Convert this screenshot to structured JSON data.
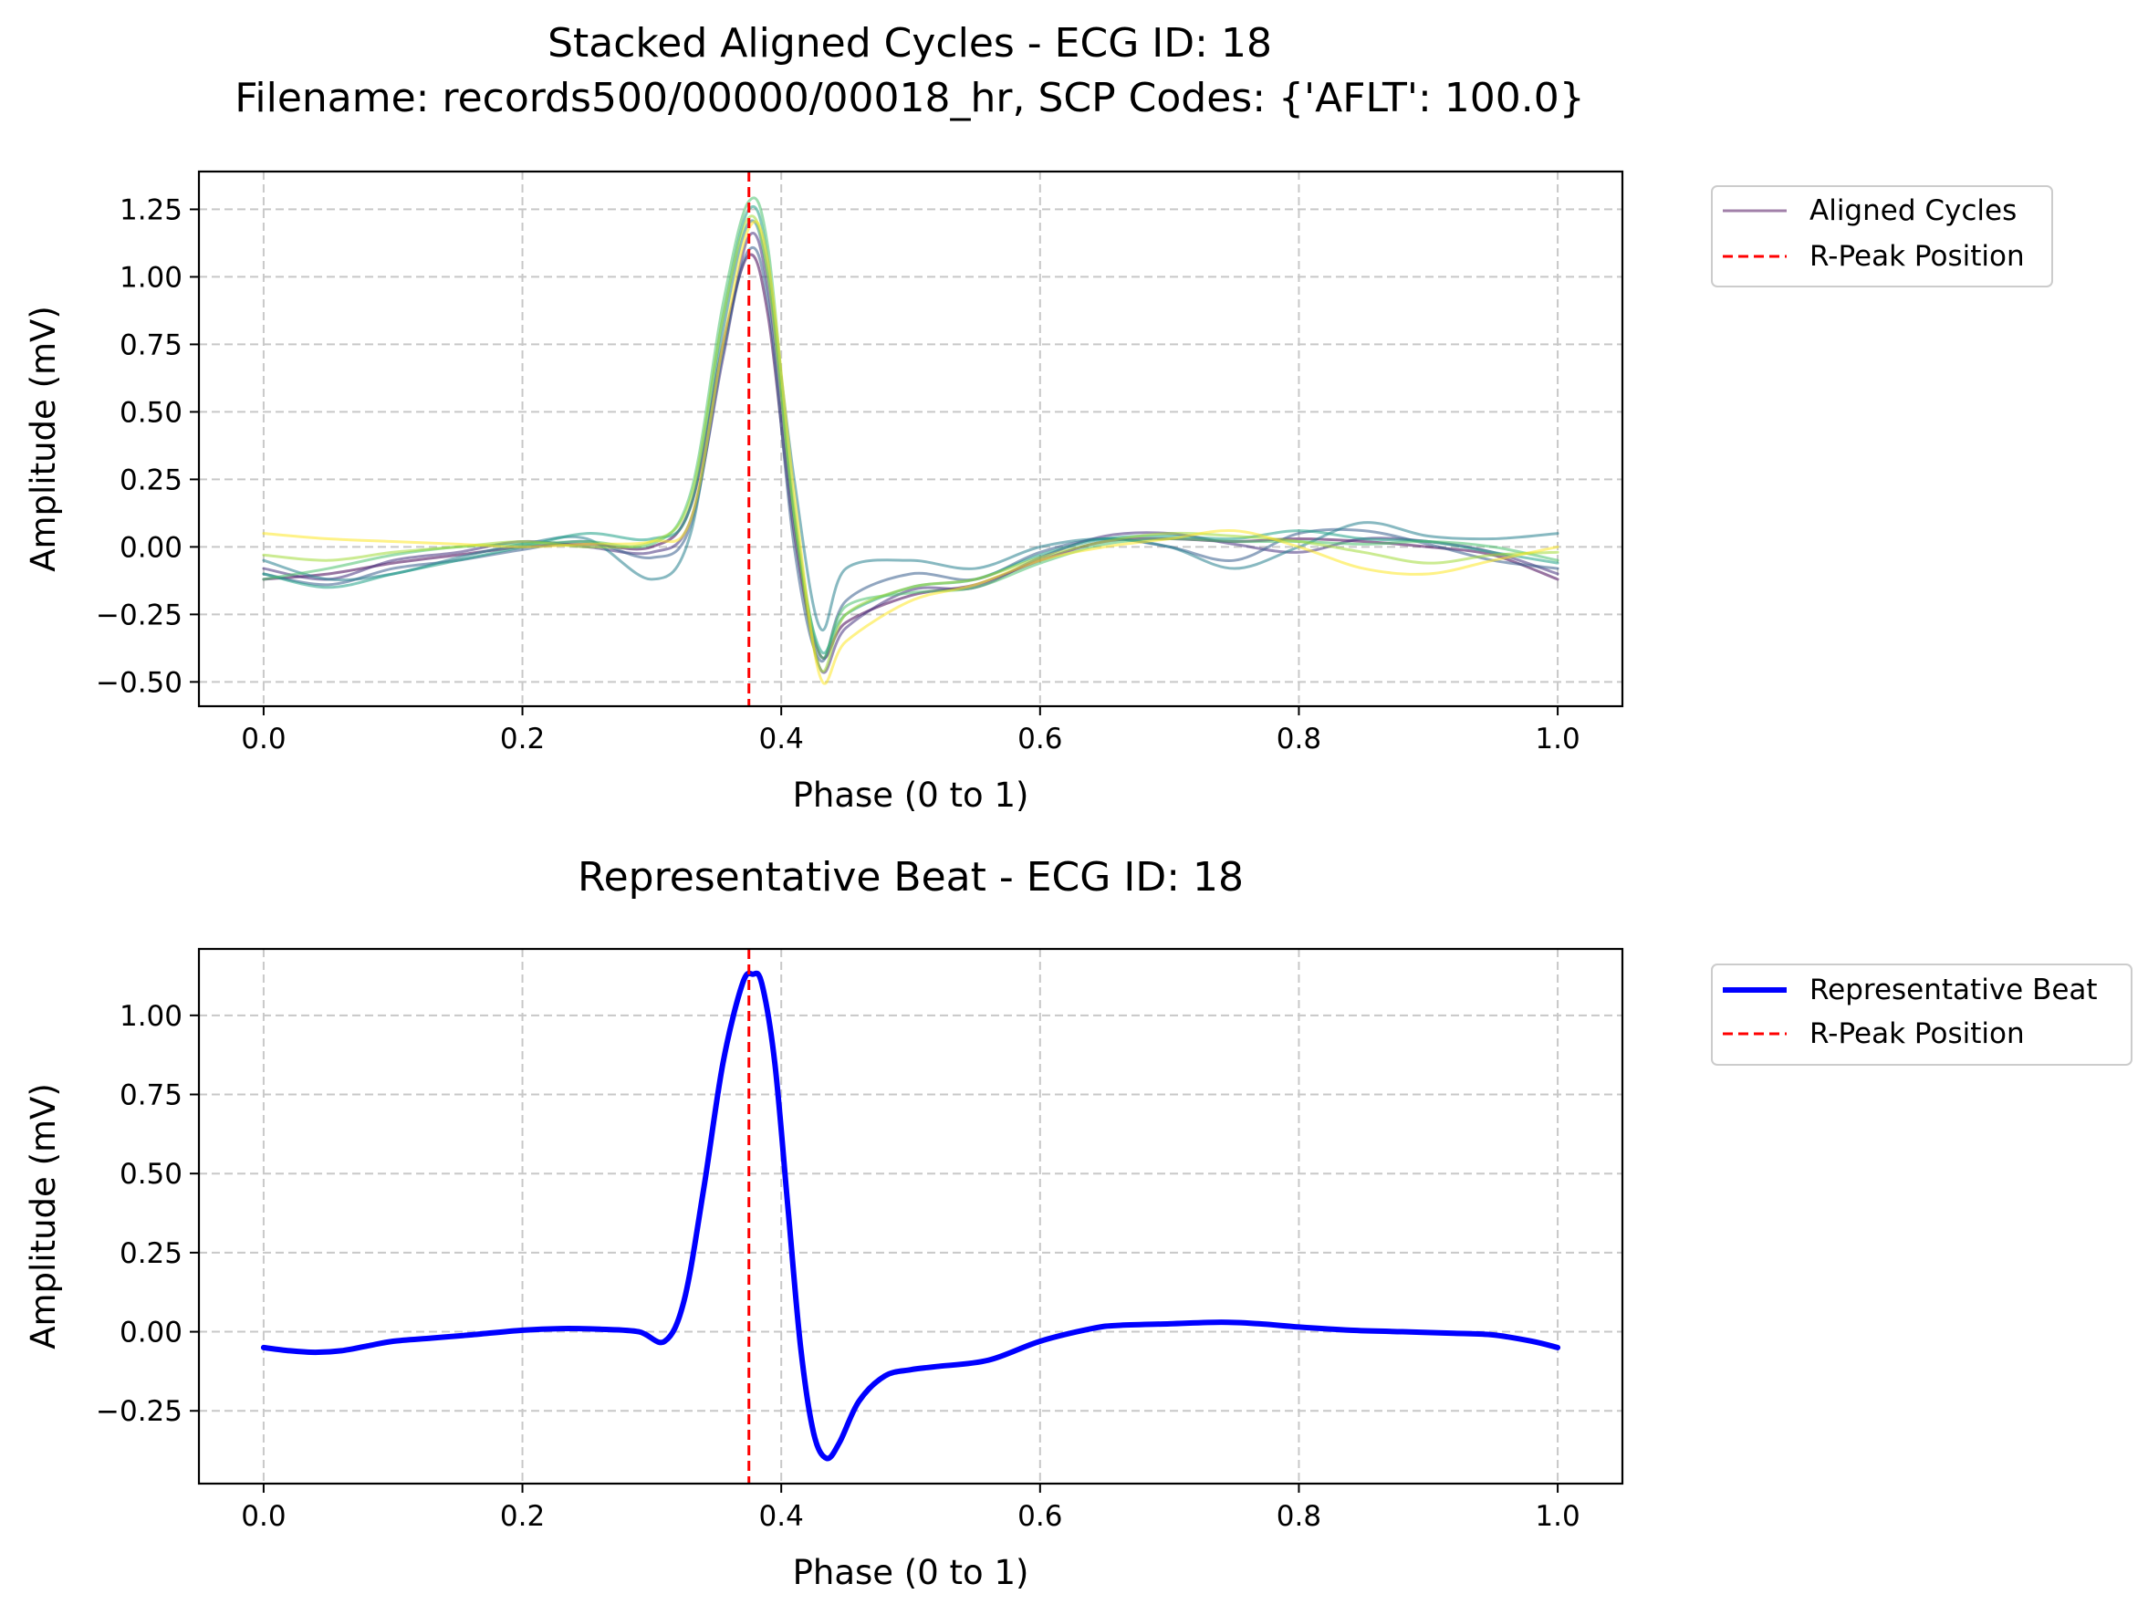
{
  "figure": {
    "suptitle_line1": "Stacked Aligned Cycles - ECG ID: 18",
    "suptitle_line2": "Filename: records500/00000/00018_hr, SCP Codes: {'AFLT': 100.0}"
  },
  "colors": {
    "representative": "#0000ff",
    "rpeak": "#ff0000",
    "grid": "#c8c8c8",
    "cycle_palette": [
      "#440154",
      "#46327e",
      "#365c8d",
      "#277f8e",
      "#1fa187",
      "#4ac16d",
      "#a0da39",
      "#fde725"
    ]
  },
  "chart_data": [
    {
      "type": "line",
      "title": "",
      "xlabel": "Phase (0 to 1)",
      "ylabel": "Amplitude (mV)",
      "xlim": [
        -0.05,
        1.05
      ],
      "ylim": [
        -0.59,
        1.39
      ],
      "xticks": [
        0.0,
        0.2,
        0.4,
        0.6,
        0.8,
        1.0
      ],
      "xtick_labels": [
        "0.0",
        "0.2",
        "0.4",
        "0.6",
        "0.8",
        "1.0"
      ],
      "yticks": [
        -0.5,
        -0.25,
        0.0,
        0.25,
        0.5,
        0.75,
        1.0,
        1.25
      ],
      "ytick_labels": [
        "−0.50",
        "−0.25",
        "0.00",
        "0.25",
        "0.50",
        "0.75",
        "1.00",
        "1.25"
      ],
      "grid": true,
      "legend_placement": "outside upper right",
      "legend": [
        {
          "label": "Aligned Cycles",
          "style": "solid"
        },
        {
          "label": "R-Peak Position",
          "style": "dashed"
        }
      ],
      "r_peak_x": 0.375,
      "series": [
        {
          "x": [
            0.0,
            0.05,
            0.1,
            0.15,
            0.2,
            0.25,
            0.3,
            0.33,
            0.355,
            0.375,
            0.39,
            0.41,
            0.43,
            0.45,
            0.5,
            0.55,
            0.6,
            0.65,
            0.7,
            0.75,
            0.8,
            0.85,
            0.9,
            0.95,
            1.0
          ],
          "y": [
            -0.12,
            -0.1,
            -0.06,
            -0.03,
            0.0,
            0.01,
            0.0,
            0.15,
            0.75,
            1.08,
            0.85,
            0.05,
            -0.4,
            -0.28,
            -0.18,
            -0.14,
            -0.05,
            0.02,
            0.03,
            0.02,
            0.03,
            0.02,
            0.0,
            -0.03,
            -0.12
          ]
        },
        {
          "x": [
            0.0,
            0.05,
            0.1,
            0.15,
            0.2,
            0.25,
            0.3,
            0.33,
            0.355,
            0.375,
            0.39,
            0.41,
            0.43,
            0.45,
            0.5,
            0.55,
            0.6,
            0.65,
            0.7,
            0.75,
            0.8,
            0.85,
            0.9,
            0.95,
            1.0
          ],
          "y": [
            -0.08,
            -0.12,
            -0.05,
            -0.02,
            0.02,
            0.0,
            -0.02,
            0.1,
            0.7,
            1.15,
            0.95,
            0.1,
            -0.45,
            -0.3,
            -0.16,
            -0.15,
            -0.04,
            0.04,
            0.05,
            0.01,
            -0.02,
            0.03,
            0.02,
            -0.02,
            -0.1
          ]
        },
        {
          "x": [
            0.0,
            0.05,
            0.1,
            0.15,
            0.2,
            0.25,
            0.3,
            0.33,
            0.355,
            0.375,
            0.39,
            0.41,
            0.43,
            0.45,
            0.5,
            0.55,
            0.6,
            0.65,
            0.7,
            0.75,
            0.8,
            0.85,
            0.9,
            0.95,
            1.0
          ],
          "y": [
            -0.1,
            -0.14,
            -0.08,
            -0.05,
            -0.01,
            0.02,
            -0.04,
            0.08,
            0.72,
            1.1,
            0.9,
            0.0,
            -0.42,
            -0.2,
            -0.1,
            -0.12,
            -0.02,
            0.03,
            0.0,
            -0.05,
            0.05,
            0.06,
            0.01,
            -0.05,
            -0.08
          ]
        },
        {
          "x": [
            0.0,
            0.05,
            0.1,
            0.15,
            0.2,
            0.25,
            0.3,
            0.33,
            0.355,
            0.375,
            0.39,
            0.41,
            0.43,
            0.45,
            0.5,
            0.55,
            0.6,
            0.65,
            0.7,
            0.75,
            0.8,
            0.85,
            0.9,
            0.95,
            1.0
          ],
          "y": [
            -0.05,
            -0.12,
            -0.1,
            -0.04,
            0.01,
            0.03,
            -0.12,
            0.05,
            0.8,
            1.2,
            1.0,
            0.25,
            -0.3,
            -0.08,
            -0.05,
            -0.08,
            0.0,
            0.03,
            0.0,
            -0.08,
            0.0,
            0.09,
            0.04,
            0.03,
            0.05
          ]
        },
        {
          "x": [
            0.0,
            0.05,
            0.1,
            0.15,
            0.2,
            0.25,
            0.3,
            0.33,
            0.355,
            0.375,
            0.39,
            0.41,
            0.43,
            0.45,
            0.5,
            0.55,
            0.6,
            0.65,
            0.7,
            0.75,
            0.8,
            0.85,
            0.9,
            0.95,
            1.0
          ],
          "y": [
            -0.1,
            -0.15,
            -0.1,
            -0.05,
            0.0,
            0.05,
            0.03,
            0.15,
            0.85,
            1.25,
            1.05,
            0.1,
            -0.38,
            -0.25,
            -0.15,
            -0.12,
            -0.03,
            0.03,
            0.04,
            0.03,
            0.06,
            0.03,
            0.02,
            -0.02,
            -0.06
          ]
        },
        {
          "x": [
            0.0,
            0.05,
            0.1,
            0.15,
            0.2,
            0.25,
            0.3,
            0.33,
            0.355,
            0.375,
            0.39,
            0.41,
            0.43,
            0.45,
            0.5,
            0.55,
            0.6,
            0.65,
            0.7,
            0.75,
            0.8,
            0.85,
            0.9,
            0.95,
            1.0
          ],
          "y": [
            -0.12,
            -0.08,
            -0.03,
            0.0,
            0.01,
            0.02,
            0.01,
            0.2,
            0.9,
            1.28,
            1.1,
            0.15,
            -0.4,
            -0.22,
            -0.17,
            -0.15,
            -0.06,
            0.01,
            0.03,
            0.02,
            0.02,
            0.01,
            0.02,
            0.0,
            -0.05
          ]
        },
        {
          "x": [
            0.0,
            0.05,
            0.1,
            0.15,
            0.2,
            0.25,
            0.3,
            0.33,
            0.355,
            0.375,
            0.39,
            0.41,
            0.43,
            0.45,
            0.5,
            0.55,
            0.6,
            0.65,
            0.7,
            0.75,
            0.8,
            0.85,
            0.9,
            0.95,
            1.0
          ],
          "y": [
            -0.03,
            -0.05,
            -0.02,
            0.0,
            0.02,
            0.0,
            0.02,
            0.18,
            0.85,
            1.22,
            1.0,
            0.12,
            -0.45,
            -0.25,
            -0.15,
            -0.12,
            -0.04,
            0.02,
            0.05,
            0.04,
            0.02,
            -0.02,
            -0.06,
            -0.03,
            -0.02
          ]
        },
        {
          "x": [
            0.0,
            0.05,
            0.1,
            0.15,
            0.2,
            0.25,
            0.3,
            0.33,
            0.355,
            0.375,
            0.39,
            0.41,
            0.43,
            0.45,
            0.5,
            0.55,
            0.6,
            0.65,
            0.7,
            0.75,
            0.8,
            0.85,
            0.9,
            0.95,
            1.0
          ],
          "y": [
            0.05,
            0.03,
            0.02,
            0.01,
            0.0,
            0.01,
            0.02,
            0.1,
            0.75,
            1.18,
            1.05,
            0.2,
            -0.48,
            -0.35,
            -0.2,
            -0.14,
            -0.05,
            0.0,
            0.03,
            0.06,
            0.0,
            -0.08,
            -0.1,
            -0.05,
            0.0
          ]
        }
      ]
    },
    {
      "type": "line",
      "title": "Representative Beat - ECG ID: 18",
      "xlabel": "Phase (0 to 1)",
      "ylabel": "Amplitude (mV)",
      "xlim": [
        -0.05,
        1.05
      ],
      "ylim": [
        -0.48,
        1.21
      ],
      "xticks": [
        0.0,
        0.2,
        0.4,
        0.6,
        0.8,
        1.0
      ],
      "xtick_labels": [
        "0.0",
        "0.2",
        "0.4",
        "0.6",
        "0.8",
        "1.0"
      ],
      "yticks": [
        -0.25,
        0.0,
        0.25,
        0.5,
        0.75,
        1.0
      ],
      "ytick_labels": [
        "−0.25",
        "0.00",
        "0.25",
        "0.50",
        "0.75",
        "1.00"
      ],
      "grid": true,
      "legend_placement": "outside upper right",
      "legend": [
        {
          "label": "Representative Beat",
          "style": "solid"
        },
        {
          "label": "R-Peak Position",
          "style": "dashed"
        }
      ],
      "r_peak_x": 0.375,
      "series": [
        {
          "name": "Representative Beat",
          "x": [
            0.0,
            0.02,
            0.04,
            0.06,
            0.08,
            0.1,
            0.13,
            0.16,
            0.2,
            0.23,
            0.26,
            0.29,
            0.31,
            0.325,
            0.34,
            0.355,
            0.37,
            0.378,
            0.385,
            0.395,
            0.405,
            0.415,
            0.425,
            0.435,
            0.445,
            0.46,
            0.48,
            0.5,
            0.52,
            0.56,
            0.6,
            0.64,
            0.66,
            0.7,
            0.74,
            0.77,
            0.8,
            0.84,
            0.88,
            0.92,
            0.95,
            0.98,
            1.0
          ],
          "y": [
            -0.05,
            -0.06,
            -0.065,
            -0.06,
            -0.045,
            -0.03,
            -0.02,
            -0.01,
            0.005,
            0.01,
            0.008,
            0.0,
            -0.03,
            0.1,
            0.45,
            0.85,
            1.1,
            1.13,
            1.1,
            0.85,
            0.4,
            -0.05,
            -0.32,
            -0.4,
            -0.35,
            -0.22,
            -0.14,
            -0.12,
            -0.11,
            -0.09,
            -0.03,
            0.01,
            0.02,
            0.025,
            0.03,
            0.025,
            0.015,
            0.005,
            0.0,
            -0.005,
            -0.01,
            -0.03,
            -0.05
          ]
        }
      ]
    }
  ]
}
